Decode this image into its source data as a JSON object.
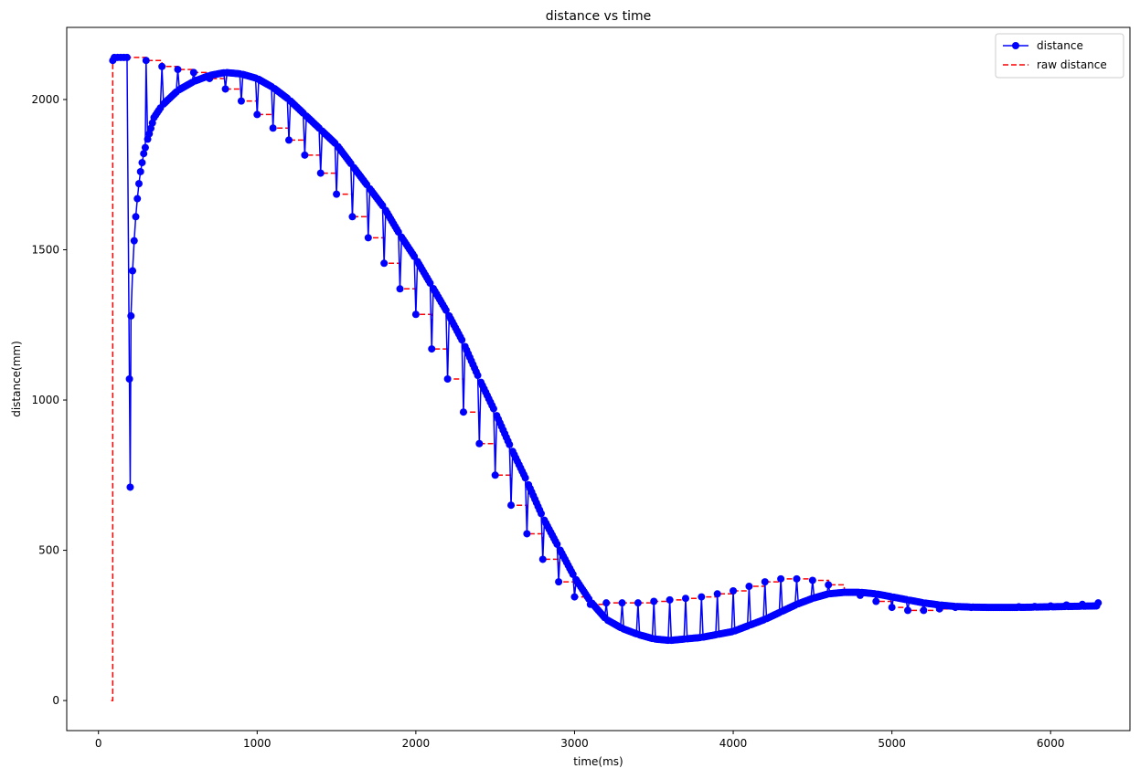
{
  "chart_data": {
    "type": "line",
    "title": "distance vs time",
    "xlabel": "time(ms)",
    "ylabel": "distance(mm)",
    "xlim": [
      -200,
      6500
    ],
    "ylim": [
      -100,
      2240
    ],
    "xticks": [
      0,
      1000,
      2000,
      3000,
      4000,
      5000,
      6000
    ],
    "yticks": [
      0,
      500,
      1000,
      1500,
      2000
    ],
    "grid": false,
    "legend": "top-right",
    "sample_interval_ms": 10,
    "raw_interval_ms": 100,
    "series": [
      {
        "name": "distance",
        "color": "#0000ff",
        "style": "solid line with circle markers",
        "smooth_curve": [
          [
            160,
            2140
          ],
          [
            190,
            1400
          ],
          [
            200,
            710
          ],
          [
            210,
            1280
          ],
          [
            240,
            1610
          ],
          [
            270,
            1790
          ],
          [
            300,
            1850
          ],
          [
            350,
            1940
          ],
          [
            400,
            1980
          ],
          [
            500,
            2030
          ],
          [
            600,
            2060
          ],
          [
            700,
            2080
          ],
          [
            800,
            2090
          ],
          [
            900,
            2085
          ],
          [
            1000,
            2070
          ],
          [
            1100,
            2040
          ],
          [
            1200,
            2000
          ],
          [
            1300,
            1950
          ],
          [
            1400,
            1900
          ],
          [
            1500,
            1850
          ],
          [
            1600,
            1780
          ],
          [
            1700,
            1710
          ],
          [
            1800,
            1640
          ],
          [
            1900,
            1550
          ],
          [
            2000,
            1470
          ],
          [
            2100,
            1380
          ],
          [
            2200,
            1290
          ],
          [
            2300,
            1190
          ],
          [
            2400,
            1070
          ],
          [
            2500,
            960
          ],
          [
            2600,
            840
          ],
          [
            2700,
            730
          ],
          [
            2800,
            610
          ],
          [
            2900,
            510
          ],
          [
            3000,
            410
          ],
          [
            3100,
            330
          ],
          [
            3200,
            270
          ],
          [
            3300,
            240
          ],
          [
            3400,
            220
          ],
          [
            3500,
            205
          ],
          [
            3600,
            200
          ],
          [
            3700,
            205
          ],
          [
            3800,
            210
          ],
          [
            3900,
            220
          ],
          [
            4000,
            230
          ],
          [
            4100,
            250
          ],
          [
            4200,
            270
          ],
          [
            4300,
            295
          ],
          [
            4400,
            320
          ],
          [
            4500,
            340
          ],
          [
            4600,
            355
          ],
          [
            4700,
            360
          ],
          [
            4800,
            360
          ],
          [
            4900,
            355
          ],
          [
            5000,
            345
          ],
          [
            5100,
            335
          ],
          [
            5200,
            325
          ],
          [
            5300,
            318
          ],
          [
            5400,
            313
          ],
          [
            5500,
            311
          ],
          [
            5600,
            310
          ],
          [
            5700,
            310
          ],
          [
            5800,
            310
          ],
          [
            5900,
            311
          ],
          [
            6000,
            312
          ],
          [
            6100,
            313
          ],
          [
            6200,
            314
          ],
          [
            6300,
            315
          ]
        ],
        "initial_points": [
          [
            90,
            2130
          ],
          [
            100,
            2140
          ],
          [
            120,
            2140
          ],
          [
            140,
            2140
          ],
          [
            160,
            2140
          ],
          [
            180,
            2140
          ],
          [
            195,
            1070
          ],
          [
            200,
            710
          ],
          [
            205,
            1280
          ],
          [
            215,
            1430
          ],
          [
            225,
            1530
          ],
          [
            235,
            1610
          ],
          [
            245,
            1670
          ],
          [
            255,
            1720
          ],
          [
            265,
            1760
          ],
          [
            275,
            1790
          ],
          [
            285,
            1820
          ],
          [
            295,
            1840
          ]
        ]
      },
      {
        "name": "raw distance",
        "color": "#ff0000",
        "style": "dashed step",
        "points": [
          [
            80,
            0
          ],
          [
            90,
            2130
          ],
          [
            100,
            2140
          ],
          [
            200,
            2140
          ],
          [
            300,
            2130
          ],
          [
            400,
            2110
          ],
          [
            500,
            2100
          ],
          [
            600,
            2090
          ],
          [
            700,
            2070
          ],
          [
            800,
            2035
          ],
          [
            900,
            1995
          ],
          [
            1000,
            1950
          ],
          [
            1100,
            1905
          ],
          [
            1200,
            1865
          ],
          [
            1300,
            1815
          ],
          [
            1400,
            1755
          ],
          [
            1500,
            1685
          ],
          [
            1600,
            1610
          ],
          [
            1700,
            1540
          ],
          [
            1800,
            1455
          ],
          [
            1900,
            1370
          ],
          [
            2000,
            1285
          ],
          [
            2100,
            1170
          ],
          [
            2200,
            1070
          ],
          [
            2300,
            960
          ],
          [
            2400,
            855
          ],
          [
            2500,
            750
          ],
          [
            2600,
            650
          ],
          [
            2700,
            555
          ],
          [
            2800,
            470
          ],
          [
            2900,
            395
          ],
          [
            3000,
            345
          ],
          [
            3100,
            320
          ],
          [
            3200,
            325
          ],
          [
            3300,
            325
          ],
          [
            3400,
            325
          ],
          [
            3500,
            330
          ],
          [
            3600,
            335
          ],
          [
            3700,
            340
          ],
          [
            3800,
            345
          ],
          [
            3900,
            355
          ],
          [
            4000,
            365
          ],
          [
            4100,
            380
          ],
          [
            4200,
            395
          ],
          [
            4300,
            405
          ],
          [
            4400,
            405
          ],
          [
            4500,
            400
          ],
          [
            4600,
            385
          ],
          [
            4700,
            360
          ],
          [
            4800,
            350
          ],
          [
            4900,
            330
          ],
          [
            5000,
            310
          ],
          [
            5100,
            300
          ],
          [
            5200,
            300
          ],
          [
            5300,
            305
          ],
          [
            5400,
            310
          ],
          [
            5500,
            310
          ],
          [
            5600,
            310
          ],
          [
            5700,
            310
          ],
          [
            5800,
            312
          ],
          [
            5900,
            313
          ],
          [
            6000,
            315
          ],
          [
            6100,
            318
          ],
          [
            6200,
            320
          ],
          [
            6300,
            325
          ]
        ]
      }
    ]
  }
}
